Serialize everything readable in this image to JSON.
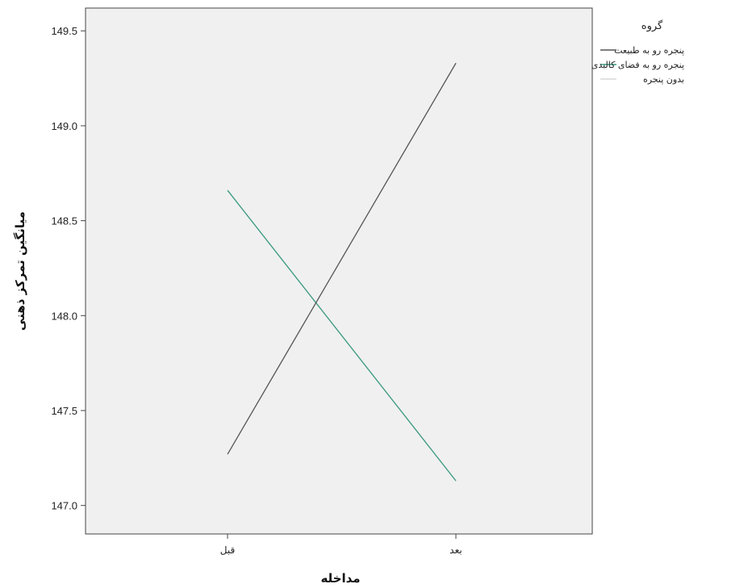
{
  "chart_data": {
    "type": "line",
    "title": "",
    "xlabel": "مداخله",
    "ylabel": "میانگین تمرکز ذهنی",
    "categories": [
      "قبل",
      "بعد"
    ],
    "ylim": [
      146.85,
      149.62
    ],
    "yticks": [
      147.0,
      147.5,
      148.0,
      148.5,
      149.0,
      149.5
    ],
    "ytick_labels": [
      "147.0",
      "147.5",
      "148.0",
      "148.5",
      "149.0",
      "149.5"
    ],
    "grid": false,
    "legend_title": "گروه",
    "legend_position": "right",
    "series": [
      {
        "name": "پنجره رو به طبیعت",
        "values": [
          147.27,
          149.33
        ],
        "color": "#555555"
      },
      {
        "name": "پنجره رو به فضای کالبدی",
        "values": [
          148.66,
          147.13
        ],
        "color": "#3a9a80"
      },
      {
        "name": "بدون پنجره",
        "values": [
          148.66,
          147.13
        ],
        "color": "#d9d9d9"
      }
    ]
  }
}
